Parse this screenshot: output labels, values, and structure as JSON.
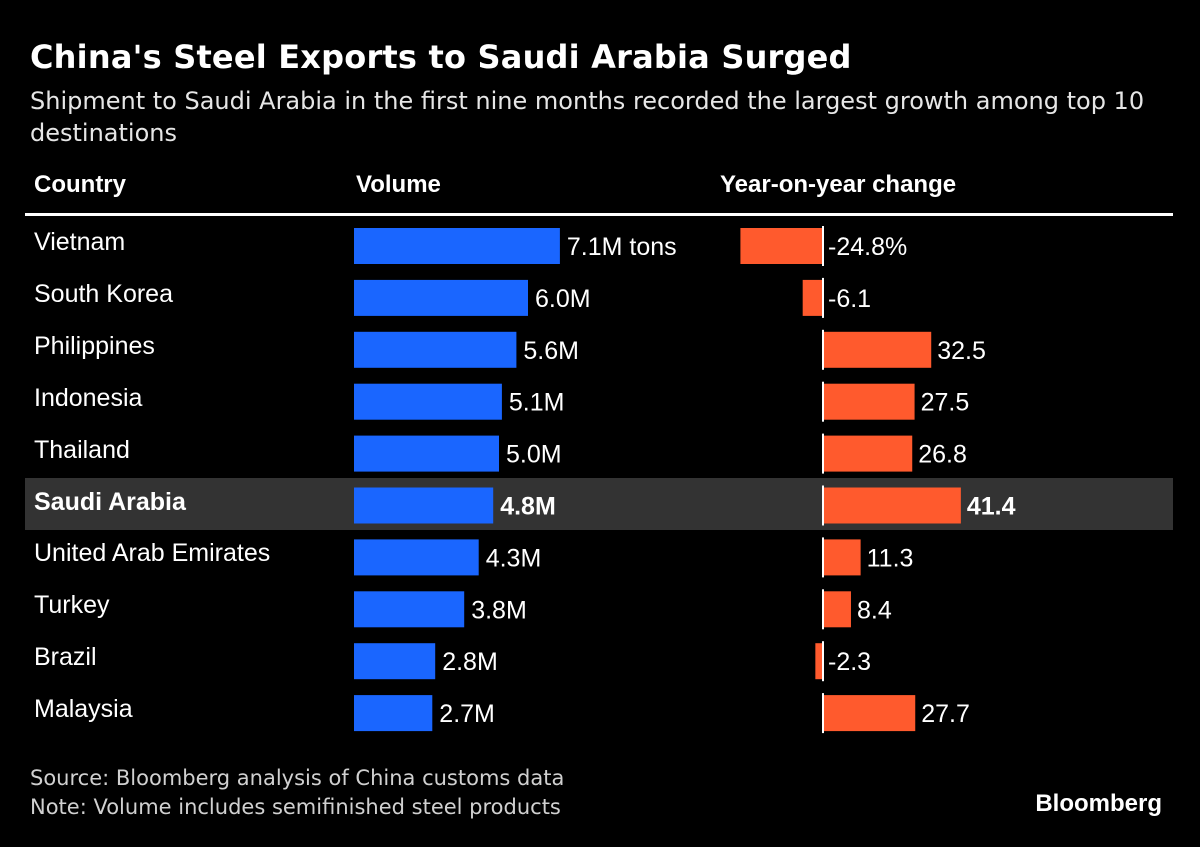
{
  "title": "China's Steel Exports to Saudi Arabia Surged",
  "subtitle": "Shipment to Saudi Arabia in the first nine months recorded the largest growth among top 10 destinations",
  "headers": {
    "country": "Country",
    "volume": "Volume",
    "yoy": "Year-on-year change"
  },
  "chart_data": {
    "type": "bar",
    "title": "China's Steel Exports to Saudi Arabia Surged",
    "categories": [
      "Vietnam",
      "South Korea",
      "Philippines",
      "Indonesia",
      "Thailand",
      "Saudi Arabia",
      "United Arab Emirates",
      "Turkey",
      "Brazil",
      "Malaysia"
    ],
    "highlight": "Saudi Arabia",
    "series": [
      {
        "name": "Volume",
        "unit": "million tons",
        "values": [
          7.1,
          6.0,
          5.6,
          5.1,
          5.0,
          4.8,
          4.3,
          3.8,
          2.8,
          2.7
        ],
        "labels": [
          "7.1M tons",
          "6.0M",
          "5.6M",
          "5.1M",
          "5.0M",
          "4.8M",
          "4.3M",
          "3.8M",
          "2.8M",
          "2.7M"
        ],
        "color": "#1a66ff"
      },
      {
        "name": "Year-on-year change",
        "unit": "%",
        "values": [
          -24.8,
          -6.1,
          32.5,
          27.5,
          26.8,
          41.4,
          11.3,
          8.4,
          -2.3,
          27.7
        ],
        "labels": [
          "-24.8%",
          "-6.1",
          "32.5",
          "27.5",
          "26.8",
          "41.4",
          "11.3",
          "8.4",
          "-2.3",
          "27.7"
        ],
        "color": "#ff5a2d"
      }
    ]
  },
  "footer": {
    "source": "Source: Bloomberg analysis of China customs data",
    "note": "Note: Volume includes semifinished steel products"
  },
  "brand": "Bloomberg"
}
